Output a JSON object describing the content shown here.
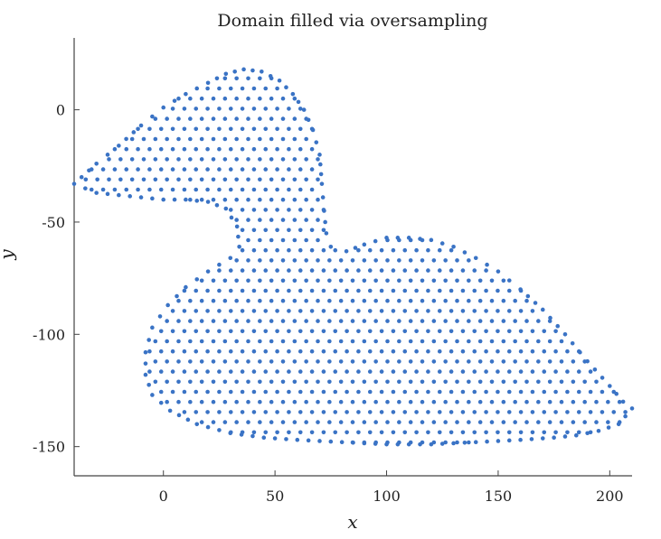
{
  "chart_data": {
    "type": "scatter",
    "title": "Domain filled via oversampling",
    "xlabel": "x",
    "ylabel": "y",
    "xlim": [
      -40,
      210
    ],
    "ylim": [
      -163,
      32
    ],
    "xticks": [
      0,
      50,
      100,
      150,
      200
    ],
    "yticks": [
      0,
      -50,
      -100,
      -150
    ],
    "xtick_labels": [
      "0",
      "50",
      "100",
      "150",
      "200"
    ],
    "ytick_labels": [
      "0",
      "-50",
      "-100",
      "-150"
    ],
    "grid": false,
    "legend": "none",
    "marker_color": "#3a73c5",
    "point_spacing": 5.2,
    "series": [
      {
        "outline": [
          [
            -40,
            -33
          ],
          [
            -30,
            -24
          ],
          [
            -20,
            -16
          ],
          [
            -10,
            -7
          ],
          [
            0,
            1
          ],
          [
            10,
            7
          ],
          [
            20,
            12
          ],
          [
            28,
            16
          ],
          [
            36,
            18
          ],
          [
            44,
            17
          ],
          [
            52,
            13
          ],
          [
            58,
            7
          ],
          [
            63,
            0
          ],
          [
            67,
            -9
          ],
          [
            70,
            -20
          ],
          [
            71,
            -33
          ],
          [
            72,
            -45
          ],
          [
            73,
            -55
          ],
          [
            75,
            -61
          ],
          [
            82,
            -63
          ],
          [
            90,
            -60
          ],
          [
            100,
            -57
          ],
          [
            110,
            -57
          ],
          [
            120,
            -58
          ],
          [
            130,
            -61
          ],
          [
            140,
            -66
          ],
          [
            150,
            -72
          ],
          [
            160,
            -80
          ],
          [
            170,
            -89
          ],
          [
            180,
            -100
          ],
          [
            190,
            -112
          ],
          [
            200,
            -123
          ],
          [
            206,
            -130
          ],
          [
            210,
            -133
          ],
          [
            204,
            -140
          ],
          [
            195,
            -143
          ],
          [
            185,
            -145
          ],
          [
            175,
            -146
          ],
          [
            160,
            -147
          ],
          [
            140,
            -148
          ],
          [
            120,
            -149
          ],
          [
            100,
            -149
          ],
          [
            80,
            -148
          ],
          [
            60,
            -147
          ],
          [
            45,
            -146
          ],
          [
            30,
            -144
          ],
          [
            15,
            -140
          ],
          [
            3,
            -134
          ],
          [
            -5,
            -127
          ],
          [
            -8,
            -118
          ],
          [
            -8,
            -108
          ],
          [
            -5,
            -97
          ],
          [
            2,
            -87
          ],
          [
            10,
            -79
          ],
          [
            20,
            -72
          ],
          [
            30,
            -66
          ],
          [
            34,
            -61
          ],
          [
            33,
            -52
          ],
          [
            28,
            -44
          ],
          [
            20,
            -41
          ],
          [
            10,
            -40
          ],
          [
            0,
            -40
          ],
          [
            -10,
            -39
          ],
          [
            -20,
            -38
          ],
          [
            -30,
            -37
          ],
          [
            -40,
            -33
          ]
        ],
        "head_lobe": [
          [
            28,
            -44
          ],
          [
            30,
            -25
          ],
          [
            42,
            -14
          ],
          [
            55,
            -18
          ],
          [
            60,
            -35
          ],
          [
            52,
            -48
          ],
          [
            40,
            -52
          ]
        ]
      }
    ]
  }
}
